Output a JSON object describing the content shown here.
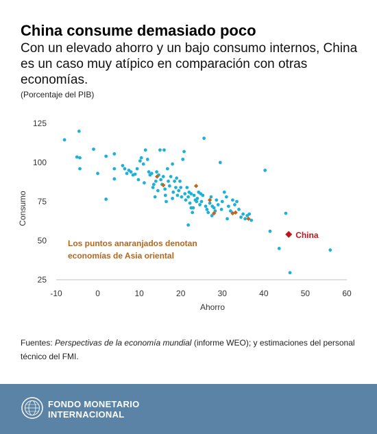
{
  "header": {
    "title": "China consume demasiado poco",
    "subtitle": "Con un elevado ahorro y un bajo consumo internos, China es un caso muy atípico en comparación con otras economías.",
    "unit_note": "(Porcentaje del PIB)"
  },
  "chart_data": {
    "type": "scatter",
    "xlabel": "Ahorro",
    "ylabel": "Consumo",
    "xlim": [
      -10,
      60
    ],
    "ylim": [
      25,
      125
    ],
    "xticks": [
      -10,
      0,
      10,
      20,
      30,
      40,
      50,
      60
    ],
    "yticks": [
      25,
      50,
      75,
      100,
      125
    ],
    "grid": false,
    "annotation": {
      "text_lines": [
        "Los puntos anaranjados denotan",
        "economías de Asia oriental"
      ],
      "color": "#b5651d"
    },
    "highlight": {
      "label": "China",
      "x": 46,
      "y": 54,
      "color": "#c0141c"
    },
    "series": [
      {
        "color": "#1fb0d8",
        "points": [
          [
            -8,
            114.5
          ],
          [
            -5,
            103.5
          ],
          [
            -4.5,
            120
          ],
          [
            -4.3,
            103
          ],
          [
            -4.3,
            96
          ],
          [
            -1,
            108.5
          ],
          [
            0,
            93
          ],
          [
            2,
            76.5
          ],
          [
            2,
            104
          ],
          [
            4,
            105.5
          ],
          [
            4,
            96
          ],
          [
            4,
            89.5
          ],
          [
            6,
            98
          ],
          [
            6.5,
            96
          ],
          [
            7,
            93
          ],
          [
            7.5,
            95
          ],
          [
            8,
            94
          ],
          [
            8.5,
            92
          ],
          [
            9,
            92.5
          ],
          [
            9.5,
            96
          ],
          [
            9.8,
            89
          ],
          [
            10.2,
            101
          ],
          [
            10.5,
            103
          ],
          [
            11,
            99
          ],
          [
            11.2,
            87
          ],
          [
            11.5,
            108
          ],
          [
            12,
            102
          ],
          [
            12.3,
            94
          ],
          [
            12.6,
            92
          ],
          [
            13,
            93
          ],
          [
            13.3,
            84
          ],
          [
            13.5,
            86
          ],
          [
            13.8,
            78
          ],
          [
            14,
            88
          ],
          [
            14.2,
            94
          ],
          [
            14.5,
            82
          ],
          [
            14.7,
            92
          ],
          [
            15,
            108
          ],
          [
            15.2,
            89
          ],
          [
            15.5,
            86
          ],
          [
            15.8,
            91
          ],
          [
            16,
            108
          ],
          [
            16.2,
            83
          ],
          [
            16.5,
            75
          ],
          [
            16.8,
            96
          ],
          [
            17,
            88
          ],
          [
            17.3,
            85
          ],
          [
            17.6,
            91
          ],
          [
            18,
            99
          ],
          [
            18.2,
            81
          ],
          [
            18.5,
            88
          ],
          [
            18.8,
            84
          ],
          [
            19,
            90
          ],
          [
            19.2,
            79
          ],
          [
            19.5,
            82
          ],
          [
            19.8,
            88
          ],
          [
            20,
            84
          ],
          [
            20.2,
            78
          ],
          [
            20.5,
            102
          ],
          [
            20.8,
            107
          ],
          [
            21,
            80
          ],
          [
            21.2,
            76
          ],
          [
            21.5,
            84
          ],
          [
            21.8,
            78
          ],
          [
            22,
            81
          ],
          [
            22.2,
            74
          ],
          [
            22.5,
            80
          ],
          [
            22.8,
            68
          ],
          [
            23,
            71
          ],
          [
            23.2,
            79
          ],
          [
            23.5,
            76
          ],
          [
            23.8,
            75
          ],
          [
            24,
            77
          ],
          [
            24.3,
            81
          ],
          [
            24.6,
            73
          ],
          [
            25,
            75
          ],
          [
            25.3,
            79
          ],
          [
            25.6,
            115.5
          ],
          [
            26,
            72
          ],
          [
            26.3,
            70
          ],
          [
            26.6,
            68
          ],
          [
            27,
            74
          ],
          [
            27.3,
            78
          ],
          [
            27.6,
            72
          ],
          [
            28,
            71
          ],
          [
            28.3,
            69
          ],
          [
            28.6,
            76
          ],
          [
            29,
            73
          ],
          [
            29.5,
            100
          ],
          [
            29.8,
            70
          ],
          [
            30,
            75
          ],
          [
            30.5,
            81
          ],
          [
            31,
            78
          ],
          [
            31.5,
            72
          ],
          [
            32,
            69
          ],
          [
            32.5,
            76
          ],
          [
            33,
            73
          ],
          [
            33.5,
            75
          ],
          [
            34,
            70
          ],
          [
            34.5,
            65
          ],
          [
            35,
            67
          ],
          [
            35.5,
            64
          ],
          [
            36,
            66
          ],
          [
            36.5,
            67
          ],
          [
            37,
            63
          ],
          [
            40.3,
            95
          ],
          [
            41.5,
            56
          ],
          [
            43.7,
            45
          ],
          [
            45.3,
            67.5
          ],
          [
            46.3,
            29.5
          ],
          [
            56,
            44
          ],
          [
            21.8,
            60
          ],
          [
            22.5,
            71
          ],
          [
            24.8,
            80
          ],
          [
            27.5,
            66
          ],
          [
            18,
            77
          ],
          [
            16.3,
            79
          ],
          [
            31.2,
            64
          ]
        ]
      },
      {
        "name": "Asia oriental",
        "color": "#c0651c",
        "marker": "diamond",
        "points": [
          [
            14.3,
            91
          ],
          [
            15.8,
            85.5
          ],
          [
            23.7,
            85
          ],
          [
            27,
            76
          ],
          [
            28,
            67.5
          ],
          [
            32.5,
            67.5
          ],
          [
            33.2,
            68
          ],
          [
            36.3,
            64
          ]
        ]
      }
    ]
  },
  "sources": {
    "prefix": "Fuentes: ",
    "italic": "Perspectivas de la economía mundial",
    "suffix": " (informe WEO); y estimaciones del personal técnico del FMI."
  },
  "footer": {
    "org_line1": "FONDO MONETARIO",
    "org_line2": "INTERNACIONAL",
    "background": "#5a83a6"
  }
}
